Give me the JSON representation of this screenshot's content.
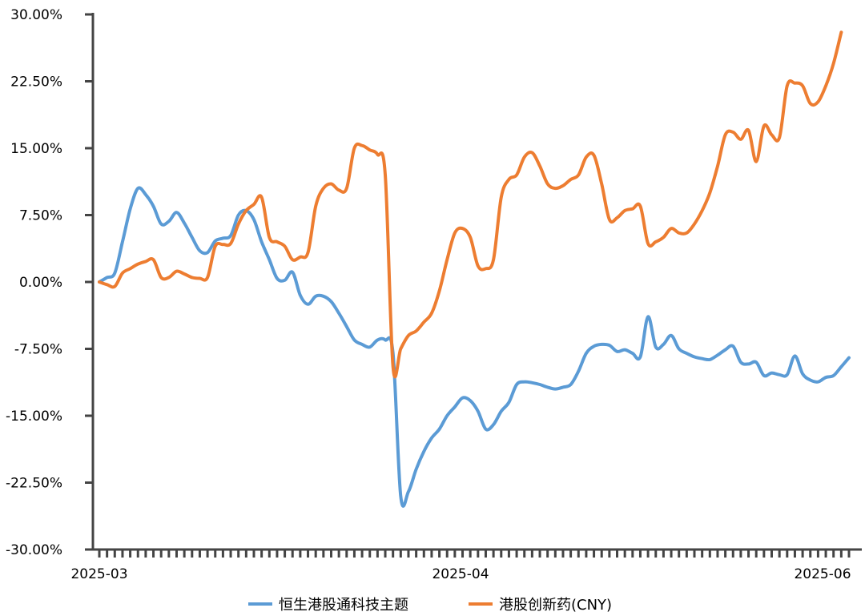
{
  "chart_data": {
    "type": "line",
    "title": "",
    "xlabel": "",
    "ylabel": "",
    "y_ticks": [
      "30.00%",
      "22.50%",
      "15.00%",
      "7.50%",
      "0.00%",
      "-7.50%",
      "-15.00%",
      "-22.50%",
      "-30.00%"
    ],
    "ylim": [
      -30,
      30
    ],
    "x_ticks": [
      "2025-03",
      "2025-04",
      "2025-06"
    ],
    "grid": false,
    "legend_position": "bottom",
    "series": [
      {
        "name": "恒生港股通科技主题",
        "color": "#5B9BD5",
        "values": [
          0.0,
          0.5,
          1.0,
          4.5,
          8.2,
          10.5,
          9.8,
          8.5,
          6.5,
          6.8,
          7.8,
          6.6,
          5.0,
          3.5,
          3.3,
          4.6,
          4.9,
          5.2,
          7.5,
          8.0,
          7.0,
          4.5,
          2.5,
          0.4,
          0.2,
          1.1,
          -1.5,
          -2.5,
          -1.6,
          -1.6,
          -2.2,
          -3.5,
          -5.0,
          -6.5,
          -7.0,
          -7.3,
          -6.5,
          -6.5,
          -8.0,
          -24.0,
          -23.5,
          -21.0,
          -19.0,
          -17.5,
          -16.5,
          -15.0,
          -14.0,
          -13.0,
          -13.3,
          -14.5,
          -16.5,
          -16.0,
          -14.5,
          -13.5,
          -11.5,
          -11.2,
          -11.3,
          -11.5,
          -11.8,
          -12.0,
          -11.8,
          -11.5,
          -10.0,
          -8.0,
          -7.2,
          -7.0,
          -7.1,
          -7.8,
          -7.6,
          -8.0,
          -8.4,
          -3.9,
          -7.3,
          -7.0,
          -6.0,
          -7.5,
          -8.0,
          -8.4,
          -8.6,
          -8.7,
          -8.2,
          -7.6,
          -7.2,
          -9.0,
          -9.2,
          -9.0,
          -10.5,
          -10.2,
          -10.4,
          -10.4,
          -8.3,
          -10.3,
          -11.0,
          -11.2,
          -10.7,
          -10.5,
          -9.5,
          -8.5
        ],
        "x_start": 0
      },
      {
        "name": "港股创新药(CNY)",
        "color": "#ED7D31",
        "values": [
          0.0,
          -0.3,
          -0.5,
          1.0,
          1.5,
          2.0,
          2.3,
          2.5,
          0.5,
          0.5,
          1.2,
          0.9,
          0.5,
          0.4,
          0.5,
          4.0,
          4.2,
          4.3,
          6.5,
          8.0,
          8.7,
          9.5,
          5.0,
          4.5,
          4.0,
          2.5,
          2.8,
          3.3,
          8.5,
          10.5,
          11.0,
          10.3,
          10.5,
          15.0,
          15.3,
          14.8,
          14.3,
          12.0,
          -9.5,
          -7.5,
          -6.0,
          -5.5,
          -4.5,
          -3.5,
          -1.0,
          2.5,
          5.5,
          6.0,
          5.0,
          1.8,
          1.5,
          2.5,
          9.5,
          11.5,
          12.0,
          14.0,
          14.5,
          13.0,
          11.0,
          10.5,
          10.8,
          11.5,
          12.0,
          14.0,
          14.2,
          11.0,
          7.0,
          7.2,
          8.0,
          8.2,
          8.5,
          4.3,
          4.5,
          5.0,
          6.0,
          5.5,
          5.5,
          6.5,
          8.0,
          10.0,
          13.0,
          16.5,
          16.8,
          16.0,
          17.0,
          13.5,
          17.5,
          16.5,
          16.2,
          22.0,
          22.3,
          22.0,
          20.0,
          20.2,
          22.0,
          24.5,
          28.0
        ],
        "x_start": 0
      }
    ]
  }
}
